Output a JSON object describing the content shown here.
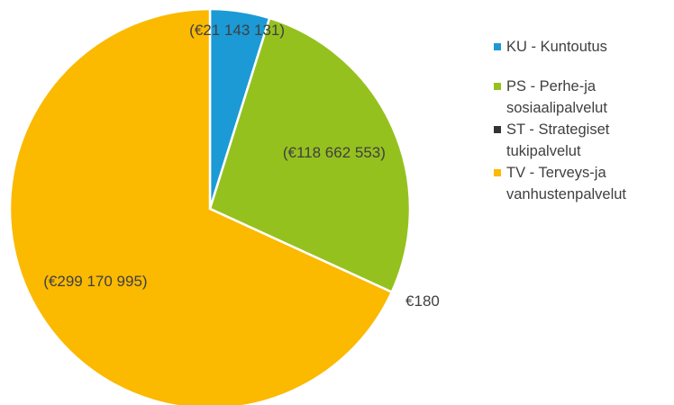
{
  "chart_data": {
    "type": "pie",
    "categories": [
      "KU - Kuntoutus",
      "PS - Perhe-ja sosiaalipalvelut",
      "ST - Strategiset tukipalvelut",
      "TV - Terveys-ja vanhustenpalvelut"
    ],
    "values": [
      21143131,
      118662553,
      180,
      299170995
    ],
    "value_labels": [
      "(€21 143 131)",
      "(€118 662 553)",
      "€180",
      "(€299 170 995)"
    ],
    "colors": [
      "#1b9ad6",
      "#95c11f",
      "#333333",
      "#fbb900"
    ],
    "legend": "right"
  }
}
